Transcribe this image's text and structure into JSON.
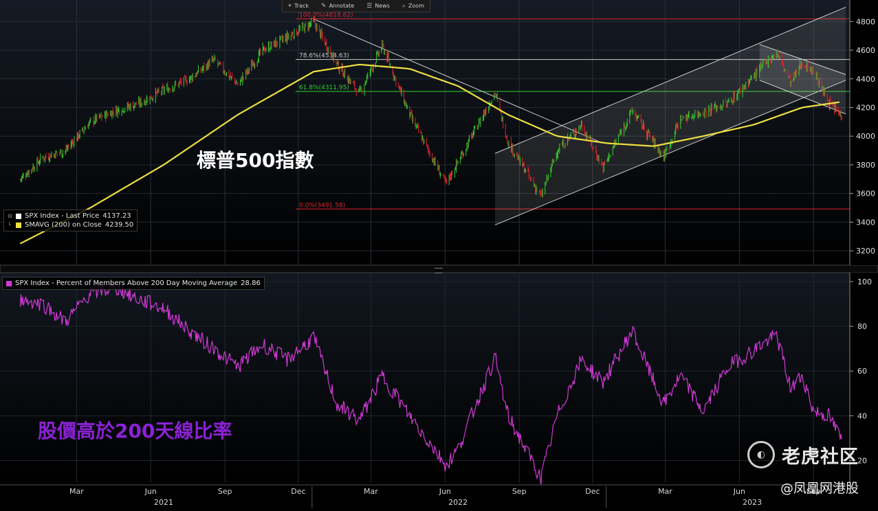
{
  "toolbar": {
    "buttons": [
      {
        "label": "Track",
        "icon": "crosshair-icon",
        "glyph": "⌖"
      },
      {
        "label": "Annotate",
        "icon": "pen-icon",
        "glyph": "✎"
      },
      {
        "label": "News",
        "icon": "news-icon",
        "glyph": "☰"
      },
      {
        "label": "Zoom",
        "icon": "magnifier-icon",
        "glyph": "⌕"
      }
    ]
  },
  "colors": {
    "price_up": "#35d12e",
    "price_down": "#e0222a",
    "sma": "#f0e040",
    "fib": "#e0242a",
    "fib_mid": "#2fd12f",
    "fib_top_gray": "#c9c9c9",
    "breadth": "#d23ad6",
    "background_top": "#10151c",
    "background_bottom": "#000000",
    "title_white": "#ffffff",
    "title_purple": "#8b22d6"
  },
  "price_panel": {
    "title_overlay": "標普500指數",
    "legend": [
      {
        "label": "SPX Index - Last Price",
        "value": "4137.23",
        "color": "#ffffff"
      },
      {
        "label": "SMAVG (200)  on Close",
        "value": "4239.50",
        "color": "#f0e040"
      }
    ],
    "fib_labels": [
      "100.0%(4818.62)",
      "78.6%(4534.63)",
      "61.8%(4311.95)",
      "0.0%(3491.58)"
    ]
  },
  "breadth_panel": {
    "title_overlay": "股價高於200天線比率",
    "legend": [
      {
        "label": "SPX Index - Percent of Members Above 200 Day Moving Average",
        "value": "28.86",
        "color": "#d23ad6"
      }
    ]
  },
  "x_axis": {
    "month_labels": [
      "Mar",
      "Jun",
      "Sep",
      "Dec",
      "Mar",
      "Jun",
      "Sep",
      "Dec",
      "Mar",
      "Jun",
      "Sep"
    ],
    "year_labels": [
      "2021",
      "2022",
      "2023"
    ]
  },
  "watermark": {
    "brand": "老虎社区",
    "logo_text": "◐",
    "source": "@凤凰网港股"
  },
  "chart_data": [
    {
      "type": "candlestick-line",
      "series": [
        {
          "name": "SPX Index - Last Price",
          "last": 4137.23,
          "x": [
            "2021-01-04",
            "2021-02-01",
            "2021-03-01",
            "2021-04-01",
            "2021-05-03",
            "2021-06-01",
            "2021-07-01",
            "2021-08-02",
            "2021-09-01",
            "2021-10-01",
            "2021-11-01",
            "2021-12-01",
            "2022-01-03",
            "2022-02-01",
            "2022-03-01",
            "2022-03-29",
            "2022-05-02",
            "2022-06-16",
            "2022-07-01",
            "2022-08-16",
            "2022-09-01",
            "2022-10-12",
            "2022-11-01",
            "2022-12-01",
            "2022-12-28",
            "2023-02-02",
            "2023-03-13",
            "2023-04-03",
            "2023-05-01",
            "2023-06-01",
            "2023-07-31",
            "2023-08-18",
            "2023-09-01",
            "2023-09-15",
            "2023-10-04",
            "2023-10-20"
          ],
          "values": [
            3700,
            3850,
            3900,
            4100,
            4180,
            4230,
            4320,
            4400,
            4530,
            4360,
            4600,
            4690,
            4796,
            4500,
            4300,
            4630,
            4150,
            3667,
            3820,
            4305,
            3960,
            3577,
            3900,
            4080,
            3783,
            4179,
            3855,
            4120,
            4170,
            4230,
            4588,
            4370,
            4515,
            4450,
            4230,
            4137
          ]
        },
        {
          "name": "SMAVG (200)  on Close",
          "last": 4239.5,
          "x": [
            "2021-01-04",
            "2021-04-01",
            "2021-07-01",
            "2021-10-01",
            "2022-01-03",
            "2022-03-01",
            "2022-05-02",
            "2022-07-01",
            "2022-09-01",
            "2022-11-01",
            "2023-01-03",
            "2023-03-01",
            "2023-05-01",
            "2023-07-03",
            "2023-09-01",
            "2023-10-20"
          ],
          "values": [
            3250,
            3500,
            3800,
            4150,
            4450,
            4500,
            4470,
            4350,
            4150,
            4000,
            3950,
            3930,
            4000,
            4080,
            4200,
            4239.5
          ]
        }
      ],
      "ylim": [
        3100,
        4950
      ],
      "y_ticks": [
        3200,
        3400,
        3600,
        3800,
        4000,
        4200,
        4400,
        4600,
        4800
      ],
      "fib_levels": [
        {
          "label": "100.0%(4818.62)",
          "value": 4818.62
        },
        {
          "label": "78.6%(4534.63)",
          "value": 4534.63
        },
        {
          "label": "61.8%(4311.95)",
          "value": 4311.95
        },
        {
          "label": "0.0%(3491.58)",
          "value": 3491.58
        }
      ],
      "trendlines": [
        {
          "from": {
            "x": "2022-01-03",
            "y": 4818
          },
          "to": {
            "x": "2022-12-28",
            "y": 3950
          }
        },
        {
          "from": {
            "x": "2022-08-16",
            "y": 3880
          },
          "to": {
            "x": "2023-10-25",
            "y": 4900
          }
        },
        {
          "from": {
            "x": "2022-08-16",
            "y": 3380
          },
          "to": {
            "x": "2023-10-25",
            "y": 4390
          }
        },
        {
          "from": {
            "x": "2023-07-10",
            "y": 4640
          },
          "to": {
            "x": "2023-10-25",
            "y": 4430
          }
        },
        {
          "from": {
            "x": "2023-07-10",
            "y": 4390
          },
          "to": {
            "x": "2023-10-25",
            "y": 4155
          }
        }
      ],
      "grid": true
    },
    {
      "type": "line",
      "series": [
        {
          "name": "SPX Index - Percent of Members Above 200 Day Moving Average",
          "last": 28.86,
          "x": [
            "2021-01-04",
            "2021-02-01",
            "2021-03-01",
            "2021-04-01",
            "2021-05-03",
            "2021-06-01",
            "2021-07-01",
            "2021-08-02",
            "2021-09-01",
            "2021-10-01",
            "2021-11-01",
            "2021-12-01",
            "2022-01-03",
            "2022-02-01",
            "2022-03-01",
            "2022-03-29",
            "2022-05-02",
            "2022-06-16",
            "2022-07-01",
            "2022-08-16",
            "2022-09-01",
            "2022-10-12",
            "2022-11-01",
            "2022-12-01",
            "2022-12-28",
            "2023-02-02",
            "2023-03-13",
            "2023-04-03",
            "2023-05-01",
            "2023-06-01",
            "2023-07-31",
            "2023-08-18",
            "2023-09-01",
            "2023-09-15",
            "2023-10-04",
            "2023-10-20"
          ],
          "values": [
            92,
            90,
            82,
            95,
            97,
            92,
            88,
            78,
            70,
            62,
            72,
            65,
            75,
            45,
            38,
            58,
            40,
            18,
            25,
            66,
            40,
            12,
            40,
            65,
            55,
            78,
            45,
            58,
            42,
            62,
            76,
            52,
            58,
            42,
            40,
            28.86
          ]
        }
      ],
      "ylim": [
        10,
        104
      ],
      "y_ticks": [
        20,
        40,
        60,
        80,
        100
      ],
      "grid": true
    }
  ]
}
